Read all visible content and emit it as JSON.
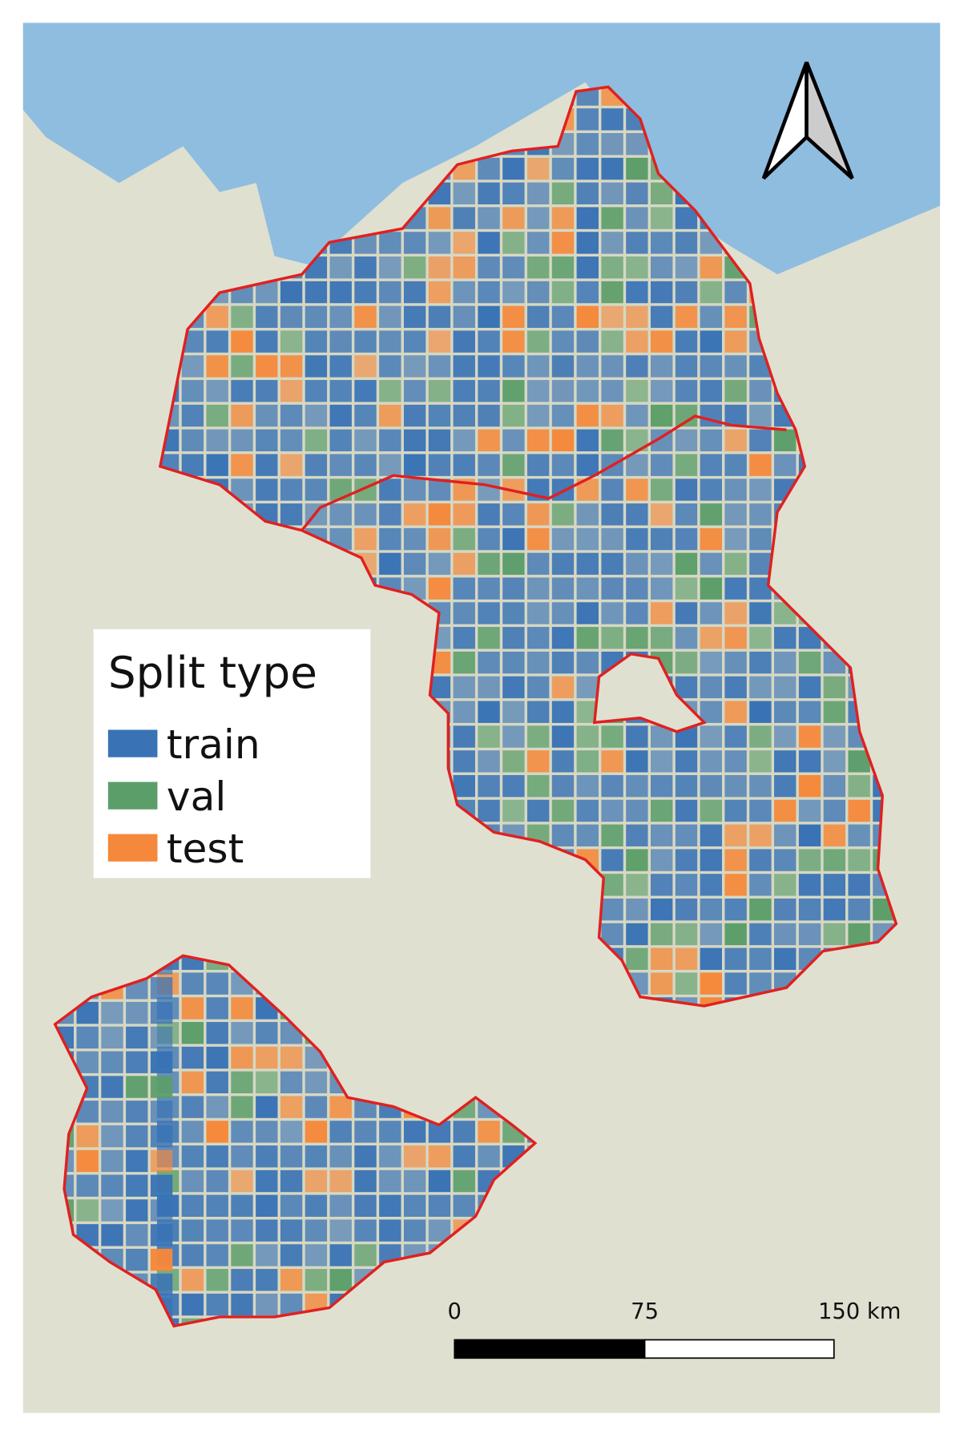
{
  "legend": {
    "title": "Split type",
    "items": [
      {
        "label": "train",
        "color": "#3a73b5"
      },
      {
        "label": "val",
        "color": "#5c9e6a"
      },
      {
        "label": "test",
        "color": "#f5883a"
      }
    ]
  },
  "scale_bar": {
    "labels": [
      "0",
      "75",
      "150 km"
    ]
  }
}
